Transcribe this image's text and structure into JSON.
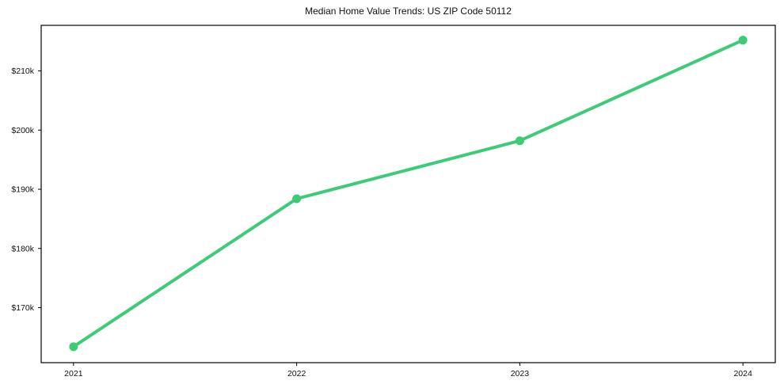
{
  "chart_data": {
    "type": "line",
    "title": "Median Home Value Trends: US ZIP Code 50112",
    "series": [
      {
        "name": "Median Home Value",
        "x": [
          2021,
          2022,
          2023,
          2024
        ],
        "values": [
          163400,
          188400,
          198200,
          215200
        ]
      }
    ],
    "xlabel": "",
    "ylabel": "",
    "xticks": {
      "values": [
        2021,
        2022,
        2023,
        2024
      ],
      "labels": [
        "2021",
        "2022",
        "2023",
        "2024"
      ]
    },
    "yticks": {
      "values": [
        170000,
        180000,
        190000,
        200000,
        210000
      ],
      "labels": [
        "$170k",
        "$180k",
        "$190k",
        "$200k",
        "$210k"
      ]
    },
    "xlim": [
      2020.855,
      2024.145
    ],
    "ylim": [
      160700,
      217700
    ],
    "grid": false,
    "legend": "none",
    "colors": {
      "line": "#3ecb78",
      "marker": "#3ecb78",
      "spine": "#000000",
      "text": "#111111",
      "background": "#ffffff"
    },
    "line_width": 4,
    "marker_size": 11
  }
}
